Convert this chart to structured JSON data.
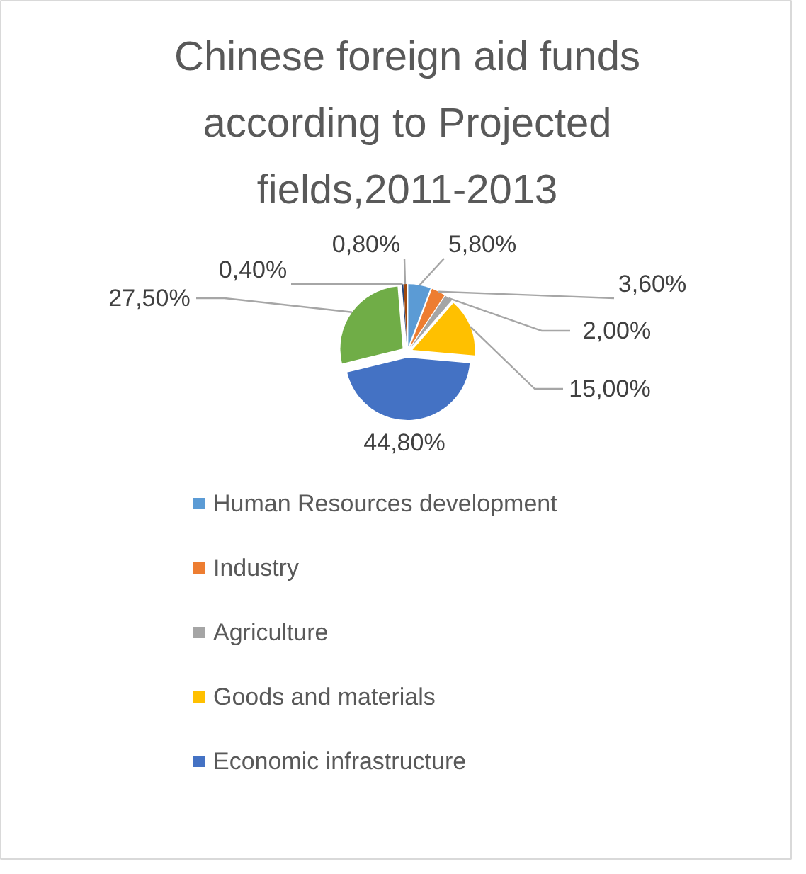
{
  "chart_data": {
    "type": "pie",
    "title": "Chinese foreign aid funds according to Projected fields,2011-2013",
    "categories": [
      "Human Resources development",
      "Industry",
      "Agriculture",
      "Goods and materials",
      "Economic infrastructure",
      null,
      null,
      null
    ],
    "values": [
      5.8,
      3.6,
      2.0,
      15.0,
      44.8,
      27.5,
      0.4,
      0.8
    ],
    "value_labels": [
      "5,80%",
      "3,60%",
      "2,00%",
      "15,00%",
      "44,80%",
      "27,50%",
      "0,40%",
      "0,80%"
    ],
    "colors": [
      "#5b9bd5",
      "#ed7d31",
      "#a5a5a5",
      "#ffc000",
      "#4472c4",
      "#70ad47",
      "#264478",
      "#9e480e"
    ],
    "legend": "bottom"
  }
}
